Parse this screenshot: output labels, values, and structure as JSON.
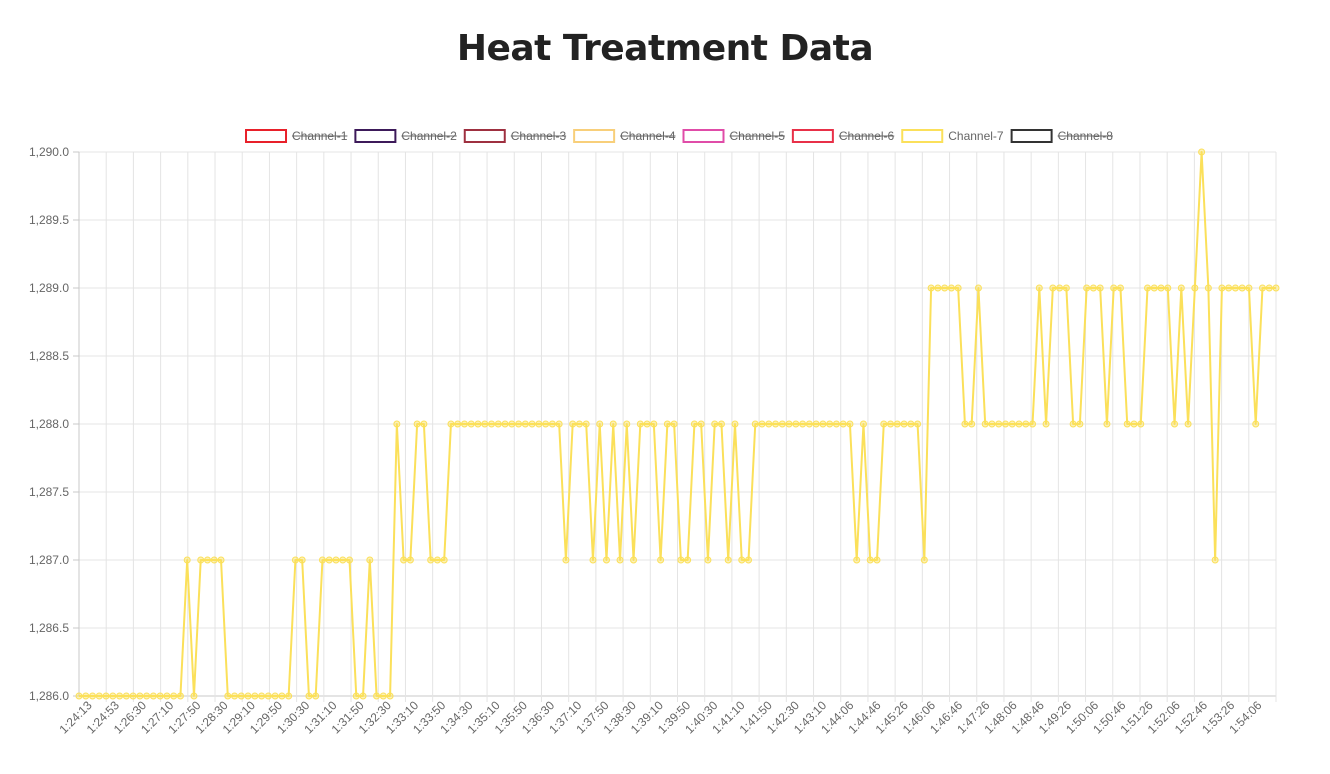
{
  "chart_data": {
    "type": "line",
    "title": "Heat Treatment Data",
    "ylim": [
      1286.0,
      1290.0
    ],
    "y_ticks": [
      "1,286.0",
      "1,286.5",
      "1,287.0",
      "1,287.5",
      "1,288.0",
      "1,288.5",
      "1,289.0",
      "1,289.5",
      "1,290.0"
    ],
    "grid": true,
    "legend_position": "top",
    "legend": [
      {
        "name": "Channel-1",
        "color": "#e8202a",
        "hidden": true
      },
      {
        "name": "Channel-2",
        "color": "#3d1a5a",
        "hidden": true
      },
      {
        "name": "Channel-3",
        "color": "#9e3040",
        "hidden": true
      },
      {
        "name": "Channel-4",
        "color": "#f8cf7a",
        "hidden": true
      },
      {
        "name": "Channel-5",
        "color": "#e04ca8",
        "hidden": true
      },
      {
        "name": "Channel-6",
        "color": "#e83048",
        "hidden": true
      },
      {
        "name": "Channel-7",
        "color": "#fbe05a",
        "hidden": false
      },
      {
        "name": "Channel-8",
        "color": "#333333",
        "hidden": true
      }
    ],
    "x_tick_labels": [
      "1:24:13",
      "1:24:53",
      "1:26:30",
      "1:27:10",
      "1:27:50",
      "1:28:30",
      "1:29:10",
      "1:29:50",
      "1:30:30",
      "1:31:10",
      "1:31:50",
      "1:32:30",
      "1:33:10",
      "1:33:50",
      "1:34:30",
      "1:35:10",
      "1:35:50",
      "1:36:30",
      "1:37:10",
      "1:37:50",
      "1:38:30",
      "1:39:10",
      "1:39:50",
      "1:40:30",
      "1:41:10",
      "1:41:50",
      "1:42:30",
      "1:43:10",
      "1:44:06",
      "1:44:46",
      "1:45:26",
      "1:46:06",
      "1:46:46",
      "1:47:26",
      "1:48:06",
      "1:48:46",
      "1:49:26",
      "1:50:06",
      "1:50:46",
      "1:51:26",
      "1:52:06",
      "1:52:46",
      "1:53:26",
      "1:54:06"
    ],
    "series": [
      {
        "name": "Channel-7",
        "values": [
          1286,
          1286,
          1286,
          1286,
          1286,
          1286,
          1286,
          1286,
          1286,
          1286,
          1286,
          1286,
          1286,
          1286,
          1286,
          1286,
          1287,
          1286,
          1287,
          1287,
          1287,
          1287,
          1286,
          1286,
          1286,
          1286,
          1286,
          1286,
          1286,
          1286,
          1286,
          1286,
          1287,
          1287,
          1286,
          1286,
          1287,
          1287,
          1287,
          1287,
          1287,
          1286,
          1286,
          1287,
          1286,
          1286,
          1286,
          1288,
          1287,
          1287,
          1288,
          1288,
          1287,
          1287,
          1287,
          1288,
          1288,
          1288,
          1288,
          1288,
          1288,
          1288,
          1288,
          1288,
          1288,
          1288,
          1288,
          1288,
          1288,
          1288,
          1288,
          1288,
          1287,
          1288,
          1288,
          1288,
          1287,
          1288,
          1287,
          1288,
          1287,
          1288,
          1287,
          1288,
          1288,
          1288,
          1287,
          1288,
          1288,
          1287,
          1287,
          1288,
          1288,
          1287,
          1288,
          1288,
          1287,
          1288,
          1287,
          1287,
          1288,
          1288,
          1288,
          1288,
          1288,
          1288,
          1288,
          1288,
          1288,
          1288,
          1288,
          1288,
          1288,
          1288,
          1288,
          1287,
          1288,
          1287,
          1287,
          1288,
          1288,
          1288,
          1288,
          1288,
          1288,
          1287,
          1289,
          1289,
          1289,
          1289,
          1289,
          1288,
          1288,
          1289,
          1288,
          1288,
          1288,
          1288,
          1288,
          1288,
          1288,
          1288,
          1289,
          1288,
          1289,
          1289,
          1289,
          1288,
          1288,
          1289,
          1289,
          1289,
          1288,
          1289,
          1289,
          1288,
          1288,
          1288,
          1289,
          1289,
          1289,
          1289,
          1288,
          1289,
          1288,
          1289,
          1290,
          1289,
          1287,
          1289,
          1289,
          1289,
          1289,
          1289,
          1288,
          1289,
          1289,
          1289
        ]
      }
    ]
  }
}
